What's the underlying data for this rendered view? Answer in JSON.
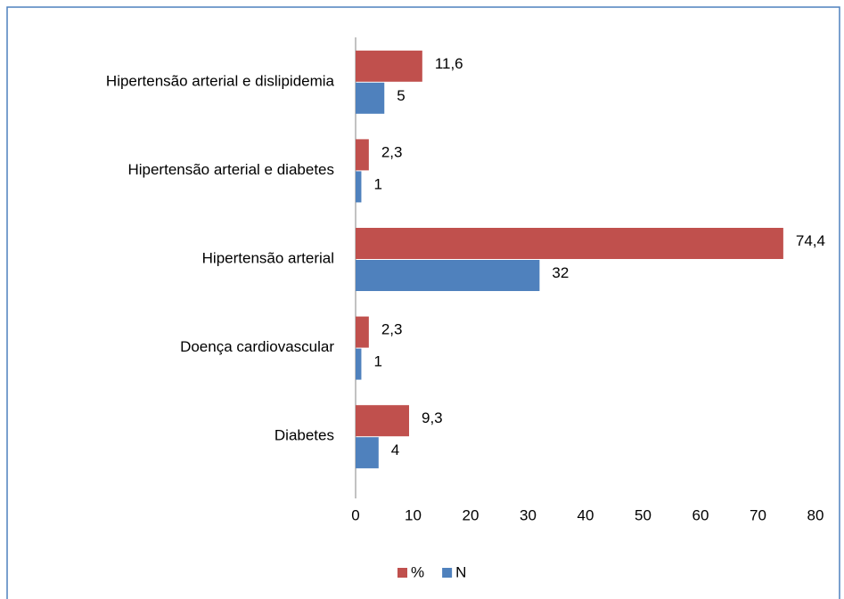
{
  "chart_data": {
    "type": "bar",
    "orientation": "horizontal",
    "categories": [
      "Hipertensão arterial e dislipidemia",
      "Hipertensão arterial e diabetes",
      "Hipertensão arterial",
      "Doença cardiovascular",
      "Diabetes"
    ],
    "series": [
      {
        "name": "%",
        "color": "#c0504d",
        "values": [
          11.6,
          2.3,
          74.4,
          2.3,
          9.3
        ],
        "value_labels": [
          "11,6",
          "2,3",
          "74,4",
          "2,3",
          "9,3"
        ]
      },
      {
        "name": "N",
        "color": "#4f81bd",
        "values": [
          5,
          1,
          32,
          1,
          4
        ]
      }
    ],
    "xlim": [
      0,
      80
    ],
    "xticks": [
      0,
      10,
      20,
      30,
      40,
      50,
      60,
      70,
      80
    ],
    "grid": false,
    "legend": "bottom"
  }
}
